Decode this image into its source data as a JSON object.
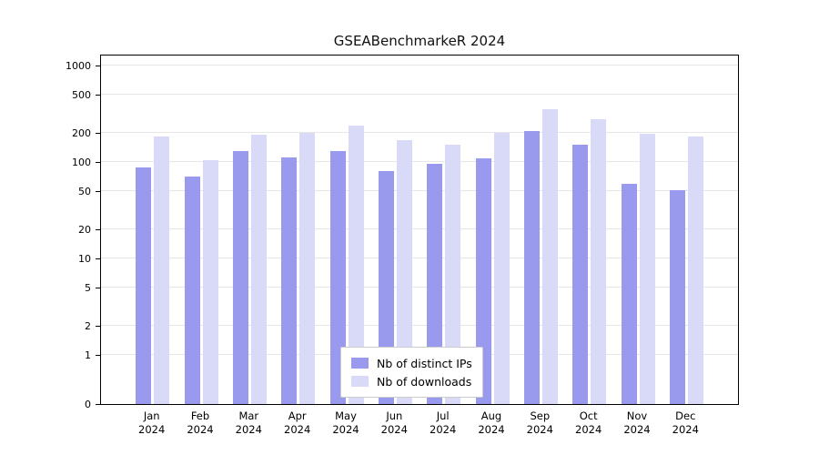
{
  "title": "GSEABenchmarkeR 2024",
  "legend": {
    "items": [
      {
        "label": "Nb of distinct IPs",
        "color": "#9999ee"
      },
      {
        "label": "Nb of downloads",
        "color": "#d9d9f8"
      }
    ]
  },
  "chart_data": {
    "type": "bar",
    "title": "GSEABenchmarkeR 2024",
    "categories": [
      "Jan 2024",
      "Feb 2024",
      "Mar 2024",
      "Apr 2024",
      "May 2024",
      "Jun 2024",
      "Jul 2024",
      "Aug 2024",
      "Sep 2024",
      "Oct 2024",
      "Nov 2024",
      "Dec 2024"
    ],
    "series": [
      {
        "name": "Nb of distinct IPs",
        "color": "#9999ee",
        "values": [
          88,
          70,
          130,
          112,
          130,
          80,
          95,
          110,
          210,
          150,
          60,
          51
        ]
      },
      {
        "name": "Nb of downloads",
        "color": "#d9d9f8",
        "values": [
          185,
          105,
          193,
          200,
          240,
          170,
          152,
          200,
          350,
          280,
          195,
          185
        ]
      }
    ],
    "xlabel": "",
    "ylabel": "",
    "yscale": "log",
    "yticks": [
      0,
      1,
      2,
      5,
      10,
      20,
      50,
      100,
      200,
      500,
      1000
    ],
    "ylim": [
      0,
      1300
    ],
    "grid": true,
    "legend_position": "bottom-center-inside"
  }
}
